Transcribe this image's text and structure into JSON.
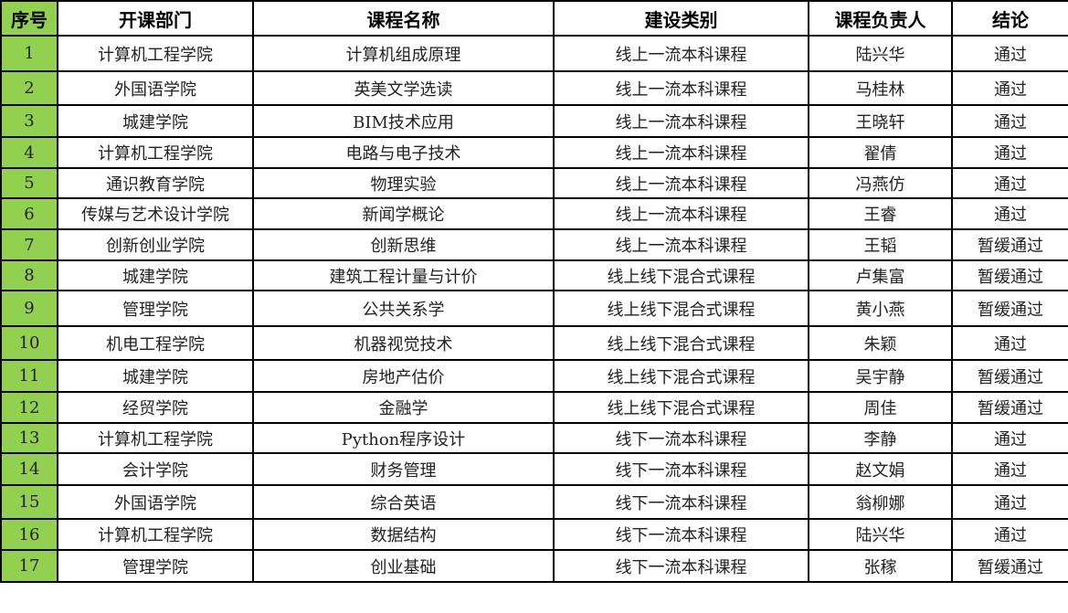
{
  "colors": {
    "index_column": "#92d050"
  },
  "headers": [
    "序号",
    "开课部门",
    "课程名称",
    "建设类别",
    "课程负责人",
    "结论"
  ],
  "rows": [
    [
      "1",
      "计算机工程学院",
      "计算机组成原理",
      "线上一流本科课程",
      "陆兴华",
      "通过"
    ],
    [
      "2",
      "外国语学院",
      "英美文学选读",
      "线上一流本科课程",
      "马桂林",
      "通过"
    ],
    [
      "3",
      "城建学院",
      "BIM技术应用",
      "线上一流本科课程",
      "王晓轩",
      "通过"
    ],
    [
      "4",
      "计算机工程学院",
      "电路与电子技术",
      "线上一流本科课程",
      "翟倩",
      "通过"
    ],
    [
      "5",
      "通识教育学院",
      "物理实验",
      "线上一流本科课程",
      "冯燕仿",
      "通过"
    ],
    [
      "6",
      "传媒与艺术设计学院",
      "新闻学概论",
      "线上一流本科课程",
      "王睿",
      "通过"
    ],
    [
      "7",
      "创新创业学院",
      "创新思维",
      "线上一流本科课程",
      "王韬",
      "暂缓通过"
    ],
    [
      "8",
      "城建学院",
      "建筑工程计量与计价",
      "线上线下混合式课程",
      "卢集富",
      "暂缓通过"
    ],
    [
      "9",
      "管理学院",
      "公共关系学",
      "线上线下混合式课程",
      "黄小燕",
      "暂缓通过"
    ],
    [
      "10",
      "机电工程学院",
      "机器视觉技术",
      "线上线下混合式课程",
      "朱颖",
      "通过"
    ],
    [
      "11",
      "城建学院",
      "房地产估价",
      "线上线下混合式课程",
      "吴宇静",
      "暂缓通过"
    ],
    [
      "12",
      "经贸学院",
      "金融学",
      "线上线下混合式课程",
      "周佳",
      "暂缓通过"
    ],
    [
      "13",
      "计算机工程学院",
      "Python程序设计",
      "线下一流本科课程",
      "李静",
      "通过"
    ],
    [
      "14",
      "会计学院",
      "财务管理",
      "线下一流本科课程",
      "赵文娟",
      "通过"
    ],
    [
      "15",
      "外国语学院",
      "综合英语",
      "线下一流本科课程",
      "翁柳娜",
      "通过"
    ],
    [
      "16",
      "计算机工程学院",
      "数据结构",
      "线下一流本科课程",
      "陆兴华",
      "通过"
    ],
    [
      "17",
      "管理学院",
      "创业基础",
      "线下一流本科课程",
      "张稼",
      "暂缓通过"
    ]
  ]
}
